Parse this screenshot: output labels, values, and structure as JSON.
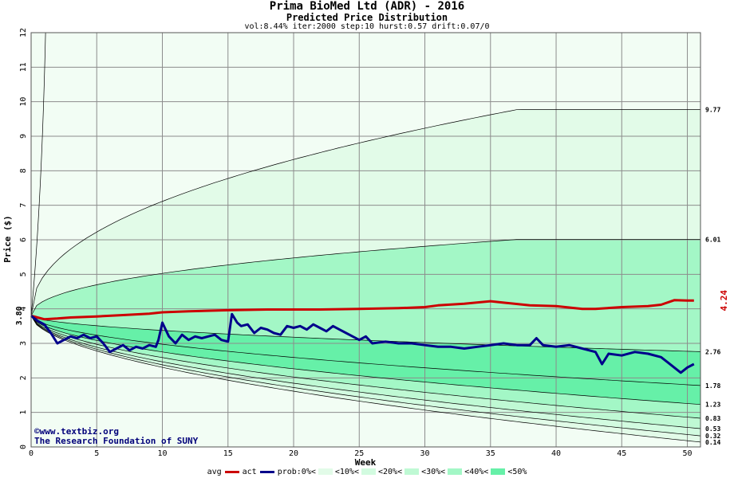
{
  "title": "Prima BioMed Ltd (ADR) - 2016",
  "subtitle": "Predicted Price Distribution",
  "params": "vol:8.44% iter:2000 step:10 hurst:0.57 drift:0.07/0",
  "watermark": {
    "line1": "©www.textbiz.org",
    "line2": "The Research Foundation of SUNY"
  },
  "legend": {
    "avg": "avg",
    "act": "act",
    "prob": "prob:0%<",
    "p10": "<10%<",
    "p20": "<20%<",
    "p30": "<30%<",
    "p40": "<40%<",
    "p50": "<50%"
  },
  "chart_data": {
    "type": "area",
    "title": "Prima BioMed Ltd (ADR) - 2016",
    "subtitle": "Predicted Price Distribution",
    "xlabel": "Week",
    "ylabel": "Price ($)",
    "xlim": [
      0,
      51
    ],
    "ylim": [
      0,
      12
    ],
    "xticks": [
      0,
      5,
      10,
      15,
      20,
      25,
      30,
      35,
      40,
      45,
      50
    ],
    "yticks": [
      0,
      1,
      2,
      3,
      4,
      5,
      6,
      7,
      8,
      9,
      10,
      11,
      12
    ],
    "grid": true,
    "start_price": {
      "value": 3.8,
      "label": "3.80"
    },
    "right_labels": [
      {
        "value": 9.77,
        "label": "9.77"
      },
      {
        "value": 6.01,
        "label": "6.01"
      },
      {
        "value": 2.76,
        "label": "2.76"
      },
      {
        "value": 1.78,
        "label": "1.78"
      },
      {
        "value": 1.23,
        "label": "1.23"
      },
      {
        "value": 0.83,
        "label": "0.83"
      },
      {
        "value": 0.53,
        "label": "0.53"
      },
      {
        "value": 0.32,
        "label": "0.32"
      },
      {
        "value": 0.14,
        "label": "0.14"
      }
    ],
    "actual_label": {
      "value": 4.24,
      "label": "4.24",
      "color": "#cc0000"
    },
    "bands": [
      {
        "name": "<10%",
        "color": "#e2fbe8"
      },
      {
        "name": "<20%",
        "color": "#d2fbe0"
      },
      {
        "name": "<30%",
        "color": "#bff9d4"
      },
      {
        "name": "<40%",
        "color": "#a3f7c6"
      },
      {
        "name": "<50%",
        "color": "#66f0a8"
      }
    ],
    "series": [
      {
        "name": "avg",
        "color": "#00008b",
        "x": [
          0,
          0.5,
          1,
          1.5,
          2,
          2.5,
          3,
          3.5,
          4,
          4.5,
          5,
          5.5,
          6,
          6.5,
          7,
          7.5,
          8,
          8.5,
          9,
          9.5,
          9.7,
          10,
          10.5,
          11,
          11.5,
          12,
          12.5,
          13,
          13.5,
          14,
          14.5,
          15,
          15.3,
          15.7,
          16,
          16.5,
          17,
          17.5,
          18,
          18.5,
          19,
          19.5,
          20,
          20.5,
          21,
          21.5,
          22,
          22.5,
          23,
          23.5,
          24,
          24.5,
          25,
          25.5,
          26,
          27,
          28,
          29,
          30,
          31,
          32,
          33,
          34,
          35,
          36,
          37,
          38,
          38.5,
          39,
          40,
          41,
          42,
          43,
          43.5,
          44,
          45,
          46,
          47,
          48,
          48.5,
          49,
          49.5,
          50,
          50.5
        ],
        "values": [
          3.8,
          3.65,
          3.55,
          3.3,
          3.0,
          3.1,
          3.2,
          3.15,
          3.25,
          3.15,
          3.2,
          3.0,
          2.75,
          2.85,
          2.95,
          2.8,
          2.9,
          2.85,
          2.95,
          2.9,
          3.1,
          3.6,
          3.2,
          3.0,
          3.25,
          3.1,
          3.2,
          3.15,
          3.2,
          3.25,
          3.1,
          3.05,
          3.85,
          3.6,
          3.5,
          3.55,
          3.3,
          3.45,
          3.4,
          3.3,
          3.25,
          3.5,
          3.45,
          3.5,
          3.4,
          3.55,
          3.45,
          3.35,
          3.5,
          3.4,
          3.3,
          3.2,
          3.1,
          3.2,
          3.0,
          3.05,
          3.0,
          3.0,
          2.95,
          2.9,
          2.9,
          2.85,
          2.9,
          2.95,
          3.0,
          2.95,
          2.95,
          3.15,
          2.95,
          2.9,
          2.95,
          2.85,
          2.75,
          2.4,
          2.7,
          2.65,
          2.75,
          2.7,
          2.6,
          2.45,
          2.3,
          2.15,
          2.3,
          2.4
        ]
      },
      {
        "name": "act",
        "color": "#cc0000",
        "x": [
          0,
          1,
          2,
          3,
          5,
          7,
          9,
          10,
          12,
          15,
          18,
          20,
          22,
          25,
          28,
          30,
          31,
          33,
          35,
          36,
          38,
          40,
          42,
          43,
          45,
          47,
          48,
          49,
          50,
          50.5
        ],
        "values": [
          3.8,
          3.7,
          3.72,
          3.75,
          3.78,
          3.82,
          3.86,
          3.9,
          3.93,
          3.96,
          3.98,
          3.98,
          3.98,
          4.0,
          4.02,
          4.05,
          4.1,
          4.15,
          4.22,
          4.18,
          4.1,
          4.08,
          4.0,
          4.0,
          4.05,
          4.08,
          4.12,
          4.25,
          4.24,
          4.24
        ]
      }
    ]
  }
}
